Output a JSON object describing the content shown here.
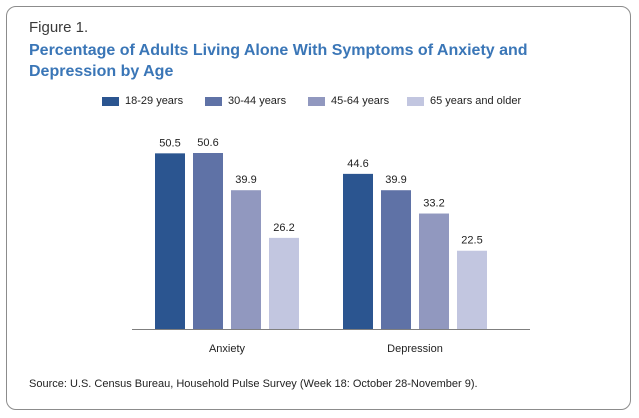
{
  "figure_label": "Figure 1.",
  "chart_data": {
    "type": "bar",
    "title": "Percentage of Adults Living Alone With Symptoms of Anxiety and Depression by Age",
    "categories": [
      "Anxiety",
      "Depression"
    ],
    "series": [
      {
        "name": "18-29 years",
        "values": [
          50.5,
          44.6
        ],
        "color": "#2b5590"
      },
      {
        "name": "30-44 years",
        "values": [
          50.6,
          39.9
        ],
        "color": "#5f72a6"
      },
      {
        "name": "45-64 years",
        "values": [
          39.9,
          33.2
        ],
        "color": "#9198bf"
      },
      {
        "name": "65 years and older",
        "values": [
          26.2,
          22.5
        ],
        "color": "#c2c6e0"
      }
    ],
    "ylim": [
      0,
      50.6
    ],
    "grid": false,
    "legend_position": "top"
  },
  "source": "Source: U.S. Census Bureau, Household Pulse Survey (Week 18: October 28-November 9)."
}
